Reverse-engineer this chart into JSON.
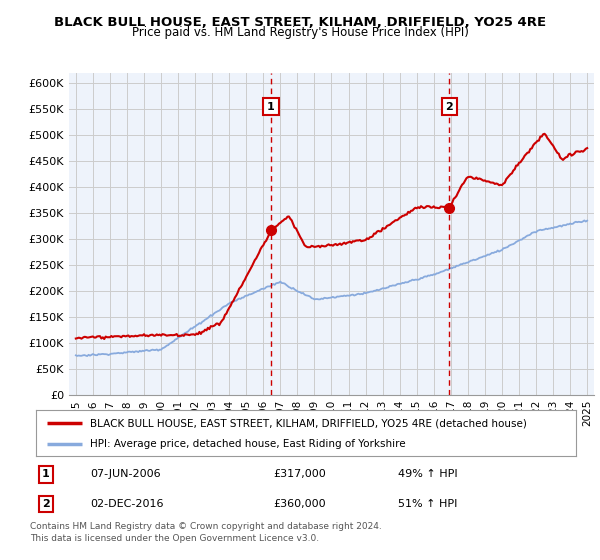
{
  "title": "BLACK BULL HOUSE, EAST STREET, KILHAM, DRIFFIELD, YO25 4RE",
  "subtitle": "Price paid vs. HM Land Registry's House Price Index (HPI)",
  "ylim": [
    0,
    620000
  ],
  "yticks": [
    0,
    50000,
    100000,
    150000,
    200000,
    250000,
    300000,
    350000,
    400000,
    450000,
    500000,
    550000,
    600000
  ],
  "ytick_labels": [
    "£0",
    "£50K",
    "£100K",
    "£150K",
    "£200K",
    "£250K",
    "£300K",
    "£350K",
    "£400K",
    "£450K",
    "£500K",
    "£550K",
    "£600K"
  ],
  "background_color": "#ffffff",
  "grid_color": "#cccccc",
  "red_color": "#cc0000",
  "blue_color": "#88aadd",
  "transaction1_date": 2006.44,
  "transaction1_price": 317000,
  "transaction2_date": 2016.92,
  "transaction2_price": 360000,
  "legend_line1": "BLACK BULL HOUSE, EAST STREET, KILHAM, DRIFFIELD, YO25 4RE (detached house)",
  "legend_line2": "HPI: Average price, detached house, East Riding of Yorkshire",
  "table_row1": [
    "1",
    "07-JUN-2006",
    "£317,000",
    "49% ↑ HPI"
  ],
  "table_row2": [
    "2",
    "02-DEC-2016",
    "£360,000",
    "51% ↑ HPI"
  ],
  "footnote": "Contains HM Land Registry data © Crown copyright and database right 2024.\nThis data is licensed under the Open Government Licence v3.0."
}
